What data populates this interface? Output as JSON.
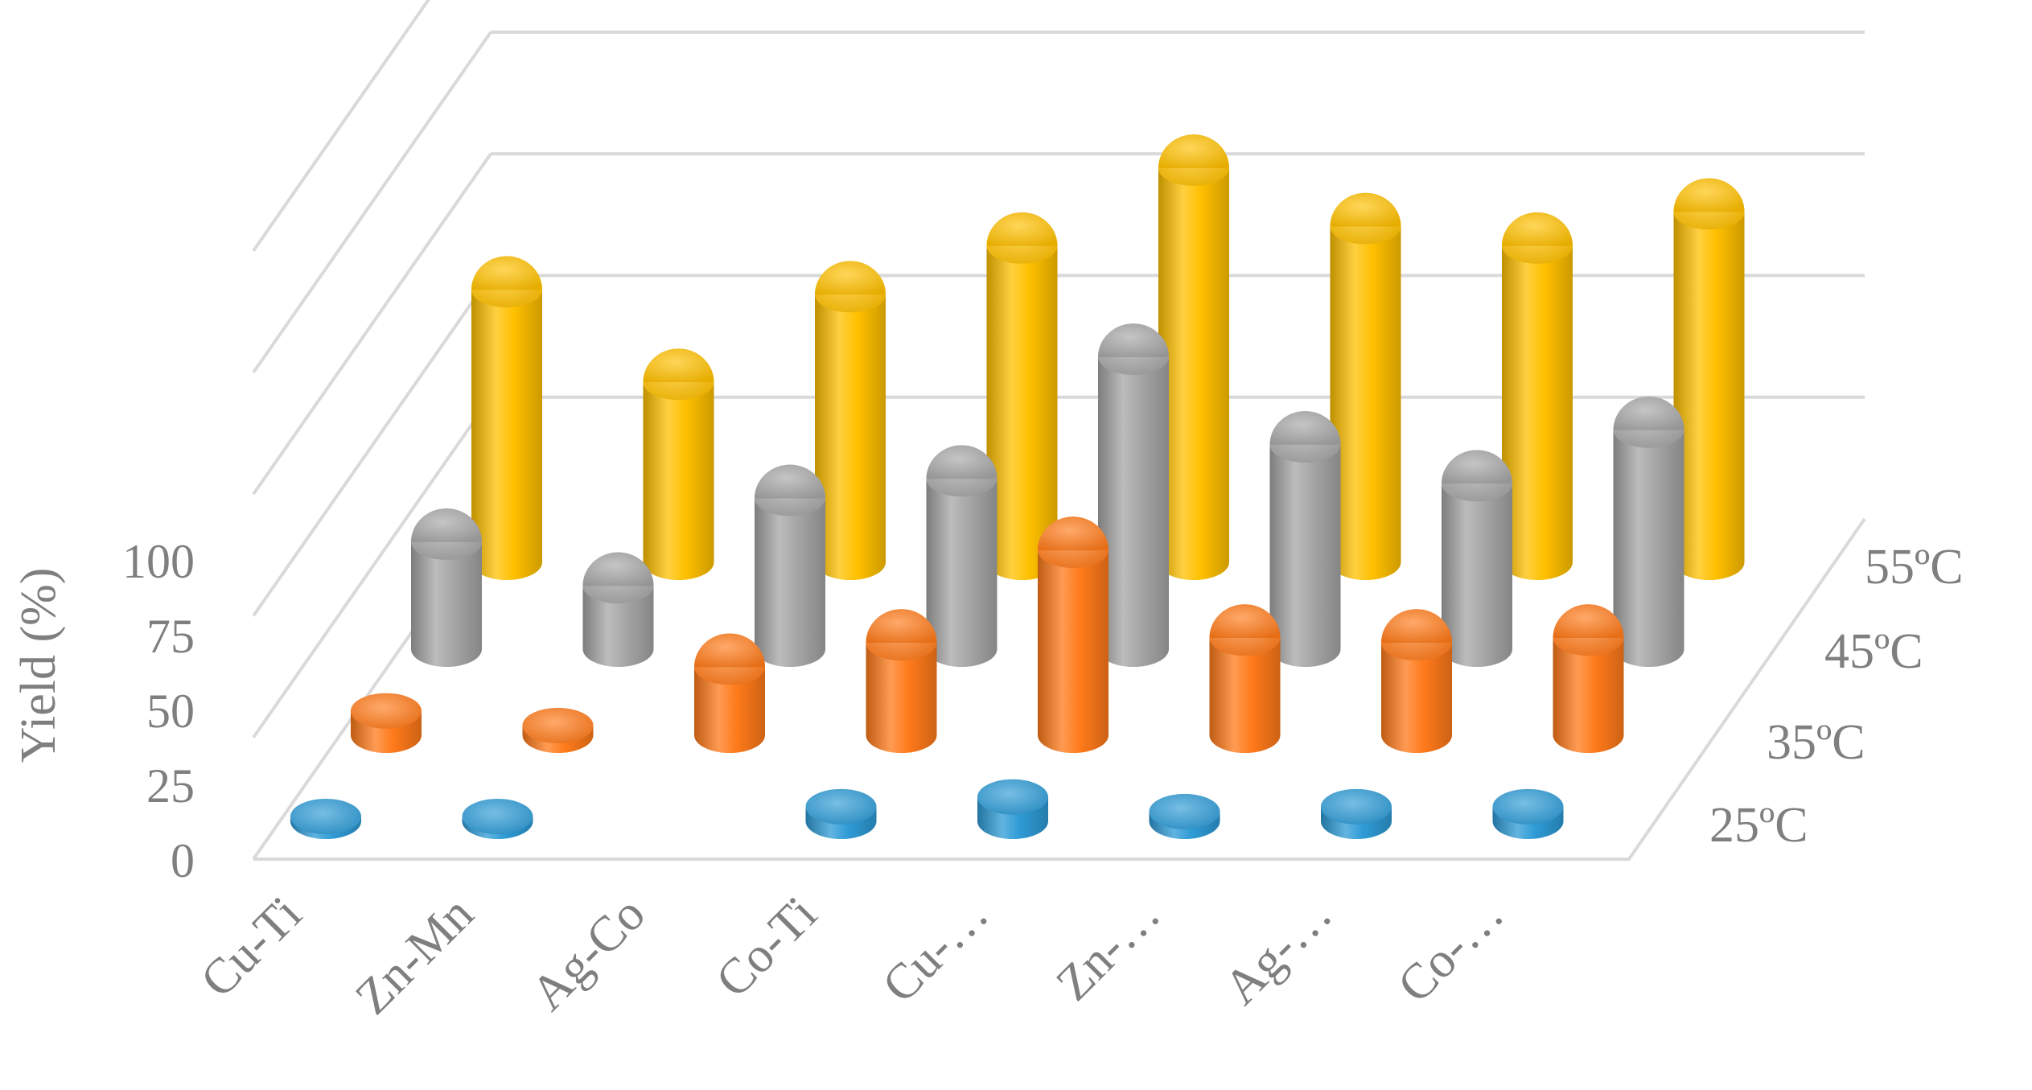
{
  "chart_data": {
    "type": "bar",
    "style": "3d-cylinder",
    "title": "",
    "xlabel": "",
    "ylabel": "Yield (%)",
    "ylim": [
      0,
      100
    ],
    "yticks": [
      0,
      25,
      50,
      75,
      100
    ],
    "grid": true,
    "categories": [
      "Cu-Ti",
      "Zn-Mn",
      "Ag-Co",
      "Co-Ti",
      "Cu-…",
      "Zn-…",
      "Ag-…",
      "Co-…"
    ],
    "series": [
      {
        "name": "25ºC",
        "color": "#2e9bd6",
        "values": [
          0,
          0,
          null,
          3,
          5,
          2,
          3,
          3
        ]
      },
      {
        "name": "35ºC",
        "color": "#ff7a1a",
        "values": [
          5,
          2,
          14,
          19,
          38,
          20,
          19,
          20
        ]
      },
      {
        "name": "45ºC",
        "color": "#a6a6a6",
        "values": [
          22,
          13,
          31,
          35,
          60,
          42,
          34,
          45
        ]
      },
      {
        "name": "55ºC",
        "color": "#ffc000",
        "values": [
          56,
          37,
          55,
          65,
          81,
          69,
          65,
          72
        ]
      }
    ]
  }
}
